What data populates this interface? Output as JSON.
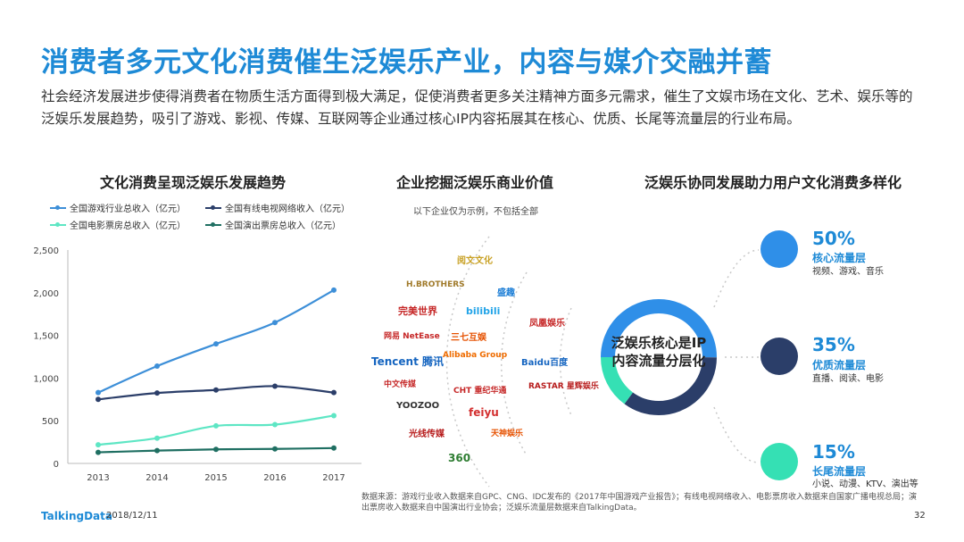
{
  "title": "消费者多元文化消费催生泛娱乐产业，内容与媒介交融并蓄",
  "intro": "社会经济发展进步使得消费者在物质生活方面得到极大满足，促使消费者更多关注精神方面多元需求，催生了文娱市场在文化、艺术、娱乐等的泛娱乐发展趋势，吸引了游戏、影视、传媒、互联网等企业通过核心IP内容拓展其在核心、优质、长尾等流量层的行业布局。",
  "sections": {
    "left": "文化消费呈现泛娱乐发展趋势",
    "middle": "企业挖掘泛娱乐商业价值",
    "right": "泛娱乐协同发展助力用户文化消费多样化"
  },
  "middle_note": "以下企业仅为示例，不包括全部",
  "logos": {
    "outer": [
      "H.BROTHERS",
      "完美世界",
      "网易 NetEase",
      "Tencent 腾讯",
      "中文传媒",
      "YOOZOO",
      "光线传媒",
      "360"
    ],
    "middle": [
      "阅文文化",
      "盛趣",
      "bilibili",
      "三七互娱",
      "Alibaba Group",
      "CHT 重纪华通",
      "feiyu",
      "天神娱乐"
    ],
    "inner": [
      "凤凰娱乐",
      "Baidu百度",
      "RASTAR 星辉娱乐"
    ]
  },
  "center_label": [
    "泛娱乐核心是IP",
    "内容流量分层化"
  ],
  "layers": [
    {
      "pct": "50%",
      "name": "核心流量层",
      "desc": "视频、游戏、音乐",
      "color": "#2f8fe8"
    },
    {
      "pct": "35%",
      "name": "优质流量层",
      "desc": "直播、阅读、电影",
      "color": "#2b3e69"
    },
    {
      "pct": "15%",
      "name": "长尾流量层",
      "desc": "小说、动漫、KTV、演出等",
      "color": "#35e0b4"
    }
  ],
  "source": "数据来源：游戏行业收入数据来自GPC、CNG、IDC发布的《2017年中国游戏产业报告》；有线电视网络收入、电影票房收入数据来自国家广播电视总局；演出票房收入数据来自中国演出行业协会；泛娱乐流量层数据来自TalkingData。",
  "footer": {
    "brand": "TalkingData",
    "date": "2018/12/11",
    "page": "32"
  },
  "chart_data": {
    "type": "line",
    "x": [
      "2013",
      "2014",
      "2015",
      "2016",
      "2017"
    ],
    "ylim": [
      0,
      2500
    ],
    "yticks": [
      "0",
      "500",
      "1,000",
      "1,500",
      "2,000",
      "2,500"
    ],
    "grid": false,
    "legend_position": "top",
    "series": [
      {
        "name": "全国游戏行业总收入（亿元）",
        "values": [
          830,
          1140,
          1400,
          1650,
          2030
        ],
        "color": "#3d8fd8"
      },
      {
        "name": "全国有线电视网络收入（亿元）",
        "values": [
          750,
          825,
          860,
          905,
          830
        ],
        "color": "#2b3e69"
      },
      {
        "name": "全国电影票房总收入（亿元）",
        "values": [
          218,
          296,
          440,
          455,
          560
        ],
        "color": "#5ee6c4"
      },
      {
        "name": "全国演出票房总收入（亿元）",
        "values": [
          130,
          150,
          165,
          170,
          180
        ],
        "color": "#1f6f62"
      }
    ]
  }
}
